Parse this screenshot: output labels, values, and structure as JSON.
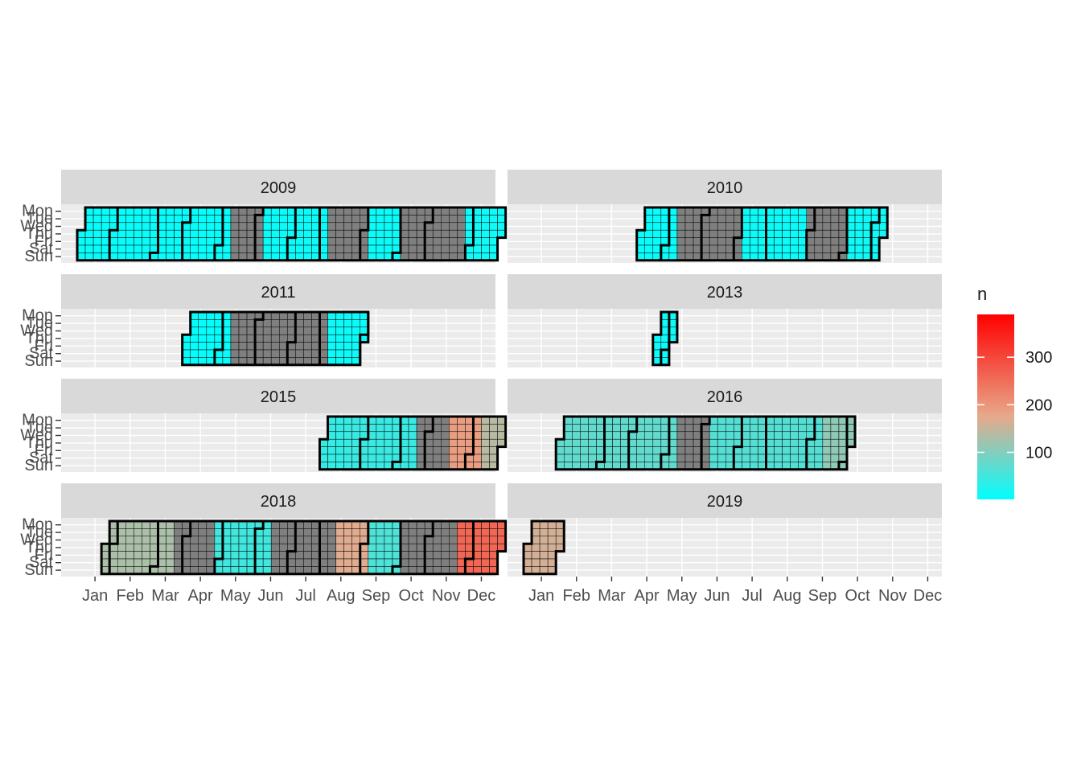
{
  "chart_data": {
    "type": "heatmap",
    "title": "",
    "xlabel": "",
    "ylabel": "",
    "month_labels": [
      "Jan",
      "Feb",
      "Mar",
      "Apr",
      "May",
      "Jun",
      "Jul",
      "Aug",
      "Sep",
      "Oct",
      "Nov",
      "Dec"
    ],
    "weekday_labels": [
      "Mon",
      "Tue",
      "Wed",
      "Thu",
      "Fri",
      "Sat",
      "Sun"
    ],
    "legend": {
      "title": "n",
      "breaks": [
        100,
        200,
        300
      ],
      "limits": [
        1,
        390
      ],
      "low_color": "#00FFFF",
      "mid_color": "#E8A88A",
      "high_color": "#FF0000",
      "na_color": "#7F7F7F",
      "placement": "right"
    },
    "panels": [
      {
        "label": "2009",
        "first_week": 0,
        "last_week": 52,
        "segments": [
          {
            "from": 0,
            "to": 18,
            "level": 8
          },
          {
            "from": 19,
            "to": 22,
            "level": null
          },
          {
            "from": 23,
            "to": 25,
            "level": 8
          },
          {
            "from": 26,
            "to": 30,
            "level": 10
          },
          {
            "from": 31,
            "to": 35,
            "level": null
          },
          {
            "from": 36,
            "to": 39,
            "level": 10
          },
          {
            "from": 40,
            "to": 47,
            "level": null
          },
          {
            "from": 48,
            "to": 52,
            "level": 12
          }
        ]
      },
      {
        "label": "2010",
        "first_week": 14,
        "last_week": 44,
        "segments": [
          {
            "from": 14,
            "to": 18,
            "level": 8
          },
          {
            "from": 19,
            "to": 26,
            "level": null
          },
          {
            "from": 27,
            "to": 34,
            "level": 10
          },
          {
            "from": 35,
            "to": 39,
            "level": null
          },
          {
            "from": 40,
            "to": 44,
            "level": 14
          }
        ]
      },
      {
        "label": "2011",
        "first_week": 13,
        "last_week": 35,
        "segments": [
          {
            "from": 13,
            "to": 18,
            "level": 6
          },
          {
            "from": 19,
            "to": 30,
            "level": null
          },
          {
            "from": 31,
            "to": 35,
            "level": 10
          }
        ]
      },
      {
        "label": "2013",
        "first_week": 16,
        "last_week": 18,
        "segments": [
          {
            "from": 16,
            "to": 18,
            "level": 12
          }
        ]
      },
      {
        "label": "2015",
        "first_week": 30,
        "last_week": 52,
        "segments": [
          {
            "from": 30,
            "to": 32,
            "level": 40
          },
          {
            "from": 33,
            "to": 41,
            "level": 45
          },
          {
            "from": 42,
            "to": 45,
            "level": null
          },
          {
            "from": 46,
            "to": 49,
            "level": 190
          },
          {
            "from": 50,
            "to": 52,
            "level": 140
          }
        ]
      },
      {
        "label": "2016",
        "first_week": 4,
        "last_week": 40,
        "segments": [
          {
            "from": 4,
            "to": 18,
            "level": 75
          },
          {
            "from": 19,
            "to": 22,
            "level": null
          },
          {
            "from": 23,
            "to": 36,
            "level": 65
          },
          {
            "from": 37,
            "to": 40,
            "level": 110
          }
        ]
      },
      {
        "label": "2018",
        "first_week": 3,
        "last_week": 52,
        "segments": [
          {
            "from": 3,
            "to": 11,
            "level": 130
          },
          {
            "from": 12,
            "to": 16,
            "level": null
          },
          {
            "from": 17,
            "to": 23,
            "level": 50
          },
          {
            "from": 24,
            "to": 31,
            "level": null
          },
          {
            "from": 32,
            "to": 35,
            "level": 170
          },
          {
            "from": 36,
            "to": 39,
            "level": 60
          },
          {
            "from": 40,
            "to": 46,
            "level": null
          },
          {
            "from": 47,
            "to": 52,
            "level": 260
          }
        ]
      },
      {
        "label": "2019",
        "first_week": 0,
        "last_week": 4,
        "segments": [
          {
            "from": 0,
            "to": 4,
            "level": 160
          }
        ]
      }
    ]
  }
}
